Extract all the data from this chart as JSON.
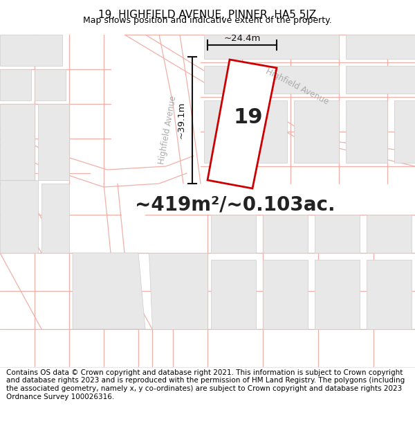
{
  "title": "19, HIGHFIELD AVENUE, PINNER, HA5 5JZ",
  "subtitle": "Map shows position and indicative extent of the property.",
  "area_text": "~419m²/~0.103ac.",
  "property_number": "19",
  "dim_width": "~24.4m",
  "dim_height": "~39.1m",
  "road_label_curve": "Highfield Avenue",
  "road_label_upper": "Highfield Avenue",
  "footer_text": "Contains OS data © Crown copyright and database right 2021. This information is subject to Crown copyright and database rights 2023 and is reproduced with the permission of HM Land Registry. The polygons (including the associated geometry, namely x, y co-ordinates) are subject to Crown copyright and database rights 2023 Ordnance Survey 100026316.",
  "map_bg": "#ffffff",
  "road_line_color": "#f0b0a8",
  "block_fill": "#e8e8e8",
  "block_edge": "#cccccc",
  "prop_fill": "#ffffff",
  "prop_edge": "#cc0000",
  "dim_color": "#111111",
  "text_color": "#222222",
  "road_label_color": "#aaaaaa",
  "title_fontsize": 11,
  "subtitle_fontsize": 9,
  "area_fontsize": 20,
  "num_fontsize": 22,
  "footer_fontsize": 7.5
}
